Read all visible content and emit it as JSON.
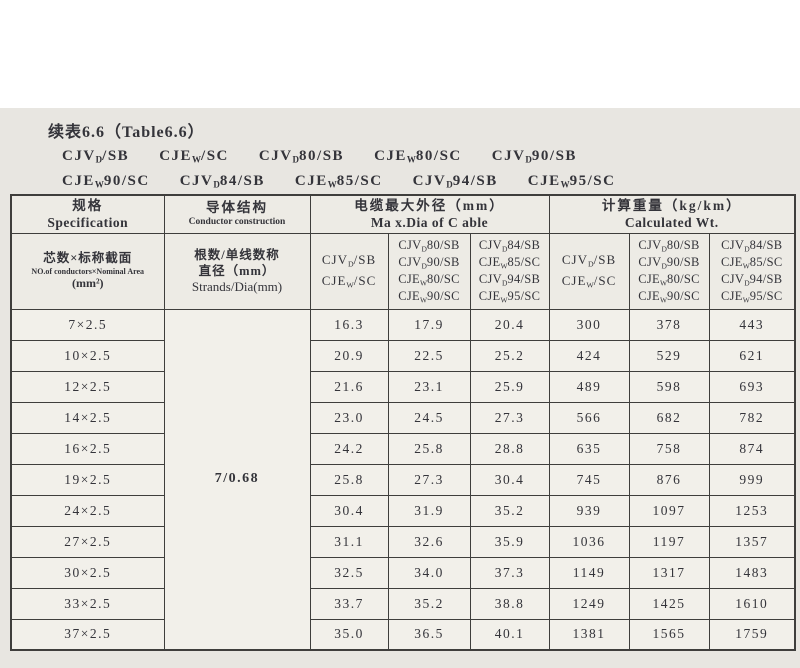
{
  "title": "续表6.6（Table6.6）",
  "cable_types": {
    "line1": [
      "CJV_{D}/SB",
      "CJE_{W}/SC",
      "CJV_{D}80/SB",
      "CJE_{W}80/SC",
      "CJV_{D}90/SB"
    ],
    "line2": [
      "CJE_{W}90/SC",
      "CJV_{D}84/SB",
      "CJE_{W}85/SC",
      "CJV_{D}94/SB",
      "CJE_{W}95/SC"
    ]
  },
  "table": {
    "header": {
      "spec": {
        "zh": "规格",
        "en": "Specification"
      },
      "conductor": {
        "zh": "导体结构",
        "en": "Conductor construction"
      },
      "max_dia": {
        "zh": "电缆最大外径（mm）",
        "en": "Ma x.Dia of C able"
      },
      "weight": {
        "zh": "计算重量（kg/km）",
        "en": "Calculated Wt."
      },
      "spec_sub": {
        "zh": "芯数×标称截面",
        "en": "NO.of conductors×Nominal Area",
        "unit": "(mm²)"
      },
      "conductor_sub": {
        "zh1": "根数/单线数称",
        "zh2": "直径（mm）",
        "en": "Strands/Dia(mm)"
      },
      "cable_groups": [
        {
          "lines": [
            "CJV_{D}/SB",
            "CJE_{W}/SC"
          ]
        },
        {
          "lines": [
            "CJV_{D}80/SB",
            "CJV_{D}90/SB",
            "CJE_{W}80/SC",
            "CJE_{W}90/SC"
          ]
        },
        {
          "lines": [
            "CJV_{D}84/SB",
            "CJE_{W}85/SC",
            "CJV_{D}94/SB",
            "CJE_{W}95/SC"
          ]
        }
      ]
    },
    "conductor_value": "7/0.68",
    "rows": [
      {
        "spec": "7×2.5",
        "dia": [
          "16.3",
          "17.9",
          "20.4"
        ],
        "wt": [
          "300",
          "378",
          "443"
        ]
      },
      {
        "spec": "10×2.5",
        "dia": [
          "20.9",
          "22.5",
          "25.2"
        ],
        "wt": [
          "424",
          "529",
          "621"
        ]
      },
      {
        "spec": "12×2.5",
        "dia": [
          "21.6",
          "23.1",
          "25.9"
        ],
        "wt": [
          "489",
          "598",
          "693"
        ]
      },
      {
        "spec": "14×2.5",
        "dia": [
          "23.0",
          "24.5",
          "27.3"
        ],
        "wt": [
          "566",
          "682",
          "782"
        ]
      },
      {
        "spec": "16×2.5",
        "dia": [
          "24.2",
          "25.8",
          "28.8"
        ],
        "wt": [
          "635",
          "758",
          "874"
        ]
      },
      {
        "spec": "19×2.5",
        "dia": [
          "25.8",
          "27.3",
          "30.4"
        ],
        "wt": [
          "745",
          "876",
          "999"
        ]
      },
      {
        "spec": "24×2.5",
        "dia": [
          "30.4",
          "31.9",
          "35.2"
        ],
        "wt": [
          "939",
          "1097",
          "1253"
        ]
      },
      {
        "spec": "27×2.5",
        "dia": [
          "31.1",
          "32.6",
          "35.9"
        ],
        "wt": [
          "1036",
          "1197",
          "1357"
        ]
      },
      {
        "spec": "30×2.5",
        "dia": [
          "32.5",
          "34.0",
          "37.3"
        ],
        "wt": [
          "1149",
          "1317",
          "1483"
        ]
      },
      {
        "spec": "33×2.5",
        "dia": [
          "33.7",
          "35.2",
          "38.8"
        ],
        "wt": [
          "1249",
          "1425",
          "1610"
        ]
      },
      {
        "spec": "37×2.5",
        "dia": [
          "35.0",
          "36.5",
          "40.1"
        ],
        "wt": [
          "1381",
          "1565",
          "1759"
        ]
      }
    ]
  },
  "colors": {
    "page_bg": "#ffffff",
    "scan_bg": "#e8e6e1",
    "cell_bg": "#f2f0ea",
    "header_bg": "#edebe5",
    "border": "#3f3e3c",
    "text": "#34343a"
  }
}
